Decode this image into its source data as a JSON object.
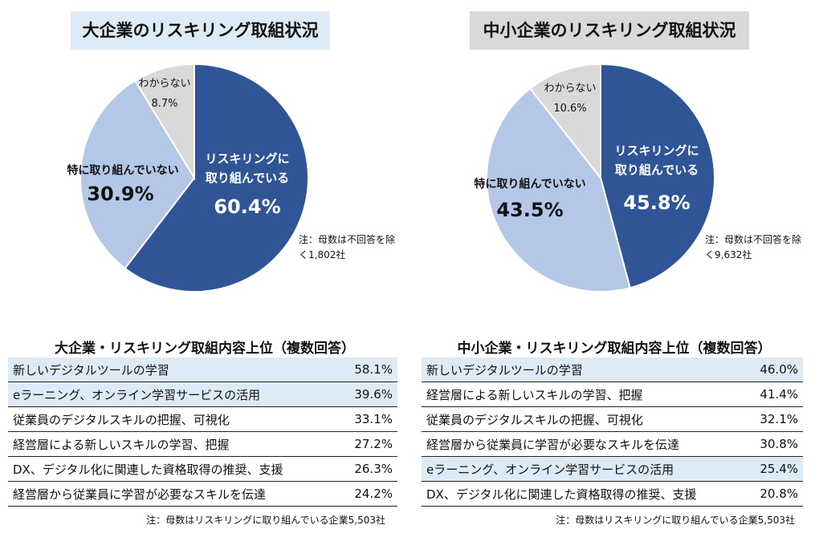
{
  "chart_data": [
    {
      "type": "pie",
      "title": "大企業のリスキリング取組状況",
      "title_bg": "#DDEBF7",
      "slices": [
        {
          "label": "リスキリングに取り組んでいる",
          "value": 60.4,
          "color": "#2F5597"
        },
        {
          "label": "特に取り組んでいない",
          "value": 30.9,
          "color": "#B4C7E7"
        },
        {
          "label": "わからない",
          "value": 8.7,
          "color": "#D9D9D9"
        }
      ],
      "value_labels": [
        "60.4%",
        "30.9%",
        "8.7%"
      ],
      "note": "注：母数は不回答を除く1,802社"
    },
    {
      "type": "pie",
      "title": "中小企業のリスキリング取組状況",
      "title_bg": "#D9D9D9",
      "slices": [
        {
          "label": "リスキリングに取り組んでいる",
          "value": 45.8,
          "color": "#2F5597"
        },
        {
          "label": "特に取り組んでいない",
          "value": 43.5,
          "color": "#B4C7E7"
        },
        {
          "label": "わからない",
          "value": 10.6,
          "color": "#D9D9D9"
        }
      ],
      "value_labels": [
        "45.8%",
        "43.5%",
        "10.6%"
      ],
      "note": "注：母数は不回答を除く9,632社"
    },
    {
      "type": "table",
      "title": "大企業・リスキリング取組内容上位（複数回答）",
      "rows": [
        [
          "新しいデジタルツールの学習",
          "58.1%"
        ],
        [
          "eラーニング、オンライン学習サービスの活用",
          "39.6%"
        ],
        [
          "従業員のデジタルスキルの把握、可視化",
          "33.1%"
        ],
        [
          "経営層による新しいスキルの学習、把握",
          "27.2%"
        ],
        [
          "DX、デジタル化に関連した資格取得の推奨、支援",
          "26.3%"
        ],
        [
          "経営層から従業員に学習が必要なスキルを伝達",
          "24.2%"
        ]
      ],
      "highlighted_rows": [
        0,
        1
      ],
      "note": "注：母数はリスキリングに取り組んでいる企業5,503社"
    },
    {
      "type": "table",
      "title": "中小企業・リスキリング取組内容上位（複数回答）",
      "rows": [
        [
          "新しいデジタルツールの学習",
          "46.0%"
        ],
        [
          "経営層による新しいスキルの学習、把握",
          "41.4%"
        ],
        [
          "従業員のデジタルスキルの把握、可視化",
          "32.1%"
        ],
        [
          "経営層から従業員に学習が必要なスキルを伝達",
          "30.8%"
        ],
        [
          "eラーニング、オンライン学習サービスの活用",
          "25.4%"
        ],
        [
          "DX、デジタル化に関連した資格取得の推奨、支援",
          "20.8%"
        ]
      ],
      "highlighted_rows": [
        0,
        4
      ],
      "note": "注：母数はリスキリングに取り組んでいる企業5,503社"
    }
  ],
  "labels": {
    "l1a": "リスキリングに",
    "l1b": "取り組んでいる"
  }
}
